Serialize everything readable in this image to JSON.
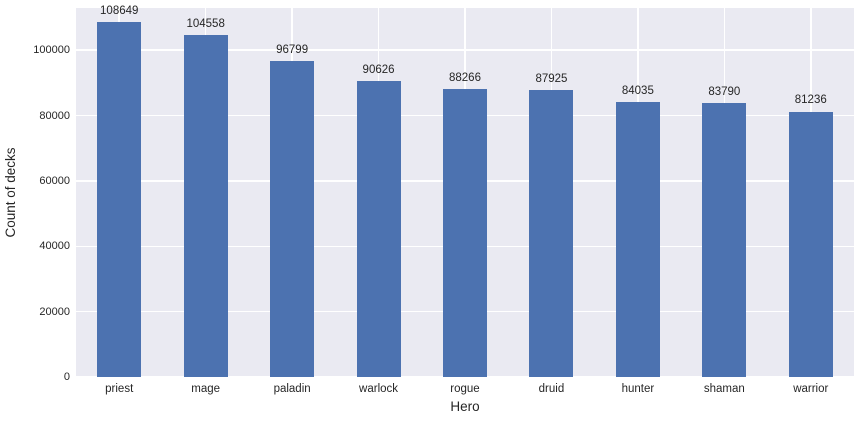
{
  "chart_data": {
    "type": "bar",
    "title": "",
    "xlabel": "Hero",
    "ylabel": "Count of decks",
    "categories": [
      "priest",
      "mage",
      "paladin",
      "warlock",
      "rogue",
      "druid",
      "hunter",
      "shaman",
      "warrior"
    ],
    "values": [
      108649,
      104558,
      96799,
      90626,
      88266,
      87925,
      84035,
      83790,
      81236
    ],
    "bar_labels": [
      "108649",
      "104558",
      "96799",
      "90626",
      "88266",
      "87925",
      "84035",
      "83790",
      "81236"
    ],
    "yticks": [
      0,
      20000,
      40000,
      60000,
      80000,
      100000
    ],
    "ytick_labels": [
      "0",
      "20000",
      "40000",
      "60000",
      "80000",
      "100000"
    ],
    "ylim": [
      0,
      112900
    ],
    "grid": true,
    "legend": false,
    "legend_position": "none",
    "colors": {
      "bar": "#4c72b0",
      "plot_background": "#eaeaf2",
      "figure_background": "#ffffff",
      "gridline": "#ffffff",
      "text": "#262626"
    }
  }
}
